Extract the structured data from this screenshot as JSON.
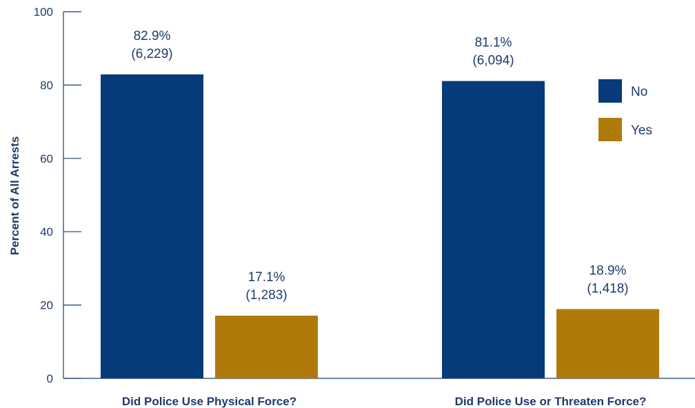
{
  "chart_data": {
    "type": "bar",
    "ylabel": "Percent of All Arrests",
    "ylim": [
      0,
      100
    ],
    "yticks": [
      0,
      20,
      40,
      60,
      80,
      100
    ],
    "categories": [
      "Did Police Use Physical Force?",
      "Did Police Use or Threaten Force?"
    ],
    "series": [
      {
        "name": "No",
        "color": "#063a78",
        "values": [
          82.9,
          81.1
        ],
        "labels": [
          [
            "82.9%",
            "(6,229)"
          ],
          [
            "81.1%",
            "(6,094)"
          ]
        ]
      },
      {
        "name": "Yes",
        "color": "#b07a0b",
        "values": [
          17.1,
          18.9
        ],
        "labels": [
          [
            "17.1%",
            "(1,283)"
          ],
          [
            "18.9%",
            "(1,418)"
          ]
        ]
      }
    ],
    "legend": {
      "position": "right"
    },
    "grid": false
  }
}
